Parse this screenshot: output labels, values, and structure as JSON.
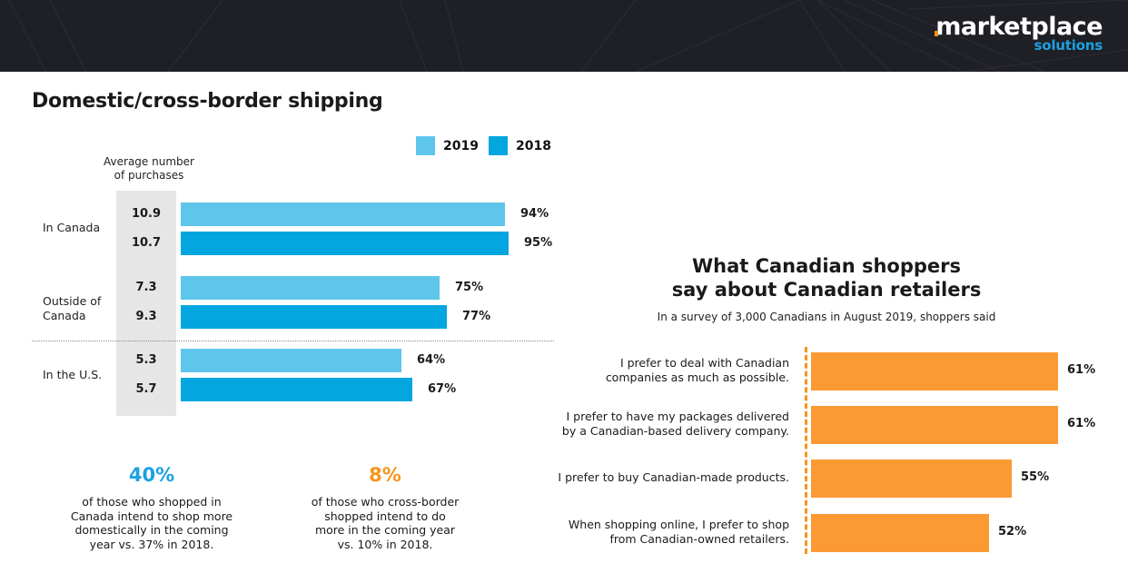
{
  "header": {
    "logo_main": "marketplace",
    "logo_sub": "solutions"
  },
  "colors": {
    "header_bg": "#1f2025",
    "bar_2019": "#5ec6eb",
    "bar_2018": "#04a6df",
    "stat_blue": "#1ba1e2",
    "stat_orange": "#f7941d",
    "orange_bar": "#fb9933",
    "gray_column": "#e6e6e6"
  },
  "left": {
    "title": "Domestic/cross-border shipping",
    "avg_label_line1": "Average number",
    "avg_label_line2": "of purchases",
    "stats": [
      {
        "value": "40%",
        "lines": [
          "of those who shopped in",
          "Canada intend to shop more",
          "domestically in the coming",
          "year vs. 37% in 2018."
        ]
      },
      {
        "value": "8%",
        "lines": [
          "of those who cross-border",
          "shopped intend to do",
          "more in the coming year",
          "vs. 10% in 2018."
        ]
      }
    ]
  },
  "right": {
    "title_line1": "What Canadian shoppers",
    "title_line2": "say about Canadian retailers",
    "subtitle": "In a survey of 3,000 Canadians in August 2019, shoppers said"
  },
  "chart_data": [
    {
      "type": "bar",
      "orientation": "horizontal",
      "title": "Domestic/cross-border shipping",
      "legend": [
        "2019",
        "2018"
      ],
      "legend_placement": "top-right",
      "categories": [
        {
          "label_lines": [
            "In Canada"
          ],
          "label": "In Canada"
        },
        {
          "label_lines": [
            "Outside of",
            "Canada"
          ],
          "label": "Outside of Canada"
        },
        {
          "label_lines": [
            "In the U.S."
          ],
          "label": "In the U.S."
        }
      ],
      "series": [
        {
          "name": "2019",
          "values": [
            94,
            75,
            64
          ],
          "labels": [
            "94%",
            "75%",
            "64%"
          ],
          "avg_purchases": [
            "10.9",
            "7.3",
            "5.3"
          ]
        },
        {
          "name": "2018",
          "values": [
            95,
            77,
            67
          ],
          "labels": [
            "95%",
            "77%",
            "67%"
          ],
          "avg_purchases": [
            "10.7",
            "9.3",
            "5.7"
          ]
        }
      ],
      "avg_purchases_header": "Average number of purchases",
      "xlim": [
        0,
        100
      ],
      "unit": "%",
      "grid": false
    },
    {
      "type": "bar",
      "orientation": "horizontal",
      "title": "What Canadian shoppers say about Canadian retailers",
      "subtitle": "In a survey of 3,000 Canadians in August 2019, shoppers said",
      "categories": [
        [
          "I prefer to deal with Canadian",
          "companies as much as possible."
        ],
        [
          "I prefer to have my packages delivered",
          "by a Canadian-based delivery company."
        ],
        [
          "I prefer to buy Canadian-made products."
        ],
        [
          "When shopping online, I prefer to shop",
          "from Canadian-owned retailers."
        ]
      ],
      "values": [
        61,
        61,
        55,
        52
      ],
      "labels": [
        "61%",
        "61%",
        "55%",
        "52%"
      ],
      "xlim": [
        29,
        100
      ],
      "unit": "%",
      "grid": false
    }
  ]
}
